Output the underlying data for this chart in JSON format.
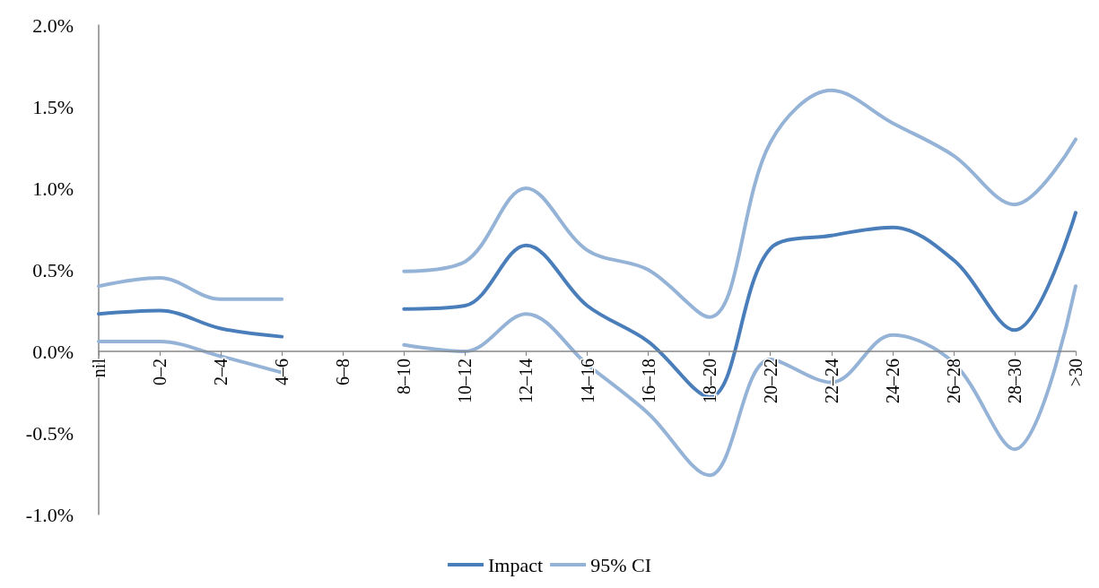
{
  "chart_data": {
    "type": "line",
    "categories": [
      "nil",
      "0–2",
      "2–4",
      "4–6",
      "6–8",
      "8–10",
      "10–12",
      "12–14",
      "14–16",
      "16–18",
      "18–20",
      "20–22",
      "22–24",
      "24–26",
      "26–28",
      "28–30",
      ">30"
    ],
    "series": [
      {
        "name": "Impact",
        "color": "#4a7ebb",
        "values": [
          0.23,
          0.25,
          0.14,
          0.09,
          null,
          0.26,
          0.28,
          0.65,
          0.28,
          0.06,
          -0.28,
          0.63,
          0.71,
          0.76,
          0.56,
          0.13,
          0.85
        ]
      },
      {
        "name": "95% CI",
        "color": "#95b3d7",
        "values": [
          0.4,
          0.45,
          0.32,
          0.32,
          null,
          0.49,
          0.55,
          1.0,
          0.62,
          0.5,
          0.21,
          1.28,
          1.6,
          1.4,
          1.2,
          0.9,
          1.3
        ]
      },
      {
        "color": "#95b3d7",
        "values": [
          0.06,
          0.06,
          -0.03,
          -0.13,
          null,
          0.04,
          0.0,
          0.23,
          -0.08,
          -0.38,
          -0.76,
          -0.05,
          -0.19,
          0.1,
          -0.07,
          -0.6,
          0.4
        ]
      }
    ],
    "ylim": [
      -1,
      2
    ],
    "yticks": [
      {
        "value": -1,
        "label": "-1.0%"
      },
      {
        "value": -0.5,
        "label": "-0.5%"
      },
      {
        "value": 0,
        "label": "0.0%"
      },
      {
        "value": 0.5,
        "label": "0.5%"
      },
      {
        "value": 1,
        "label": "1.0%"
      },
      {
        "value": 1.5,
        "label": "1.5%"
      },
      {
        "value": 2,
        "label": "2.0%"
      }
    ],
    "legend": "bottom",
    "marker": "none",
    "line_style": "solid"
  }
}
